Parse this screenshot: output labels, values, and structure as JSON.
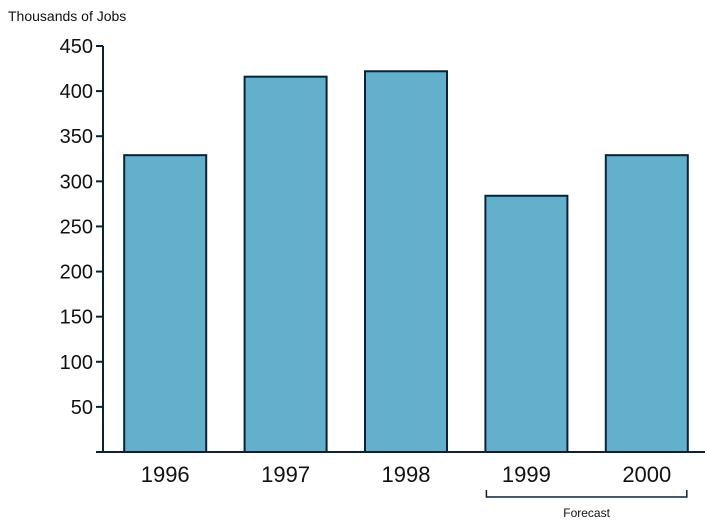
{
  "chart_data": {
    "type": "bar",
    "title": "",
    "ylabel": "Thousands of Jobs",
    "xlabel": "",
    "categories": [
      "1996",
      "1997",
      "1998",
      "1999",
      "2000"
    ],
    "values": [
      329,
      416,
      422,
      284,
      329
    ],
    "ylim": [
      0,
      450
    ],
    "yticks": [
      50,
      100,
      150,
      200,
      250,
      300,
      350,
      400,
      450
    ],
    "grid": false,
    "bar_color": "#62b0cc",
    "bar_edge_color": "#0b2236",
    "annotations": [
      {
        "text": "Forecast",
        "spans": [
          "1999",
          "2000"
        ]
      }
    ]
  }
}
